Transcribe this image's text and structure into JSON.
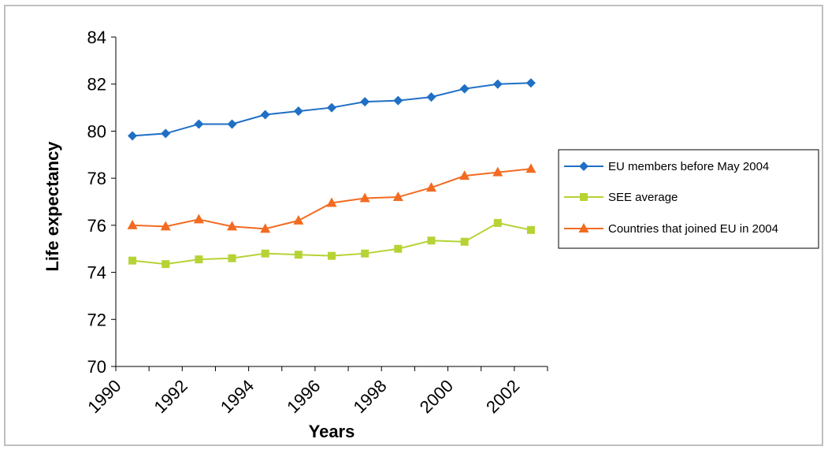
{
  "chart_data": {
    "type": "line",
    "title": "",
    "xlabel": "Years",
    "ylabel": "Life expectancy",
    "ylim": [
      70,
      84
    ],
    "yticks": [
      70,
      72,
      74,
      76,
      78,
      80,
      82,
      84
    ],
    "xlim": [
      1990,
      2003
    ],
    "xticks": [
      1990,
      1992,
      1994,
      1996,
      1998,
      2000,
      2002
    ],
    "x": [
      1990,
      1991,
      1992,
      1993,
      1994,
      1995,
      1996,
      1997,
      1998,
      1999,
      2000,
      2001,
      2002
    ],
    "grid": false,
    "legend_position": "right",
    "series": [
      {
        "name": "EU members before May 2004",
        "color": "#1f6fc5",
        "marker": "diamond",
        "values": [
          79.8,
          79.9,
          80.3,
          80.3,
          80.7,
          80.85,
          81.0,
          81.25,
          81.3,
          81.45,
          81.8,
          82.0,
          82.05
        ]
      },
      {
        "name": "SEE average",
        "color": "#b6d335",
        "marker": "square",
        "values": [
          74.5,
          74.35,
          74.55,
          74.6,
          74.8,
          74.75,
          74.7,
          74.8,
          75.0,
          75.35,
          75.3,
          76.1,
          75.8
        ]
      },
      {
        "name": "Countries that joined EU in 2004",
        "color": "#f26b21",
        "marker": "triangle",
        "values": [
          76.0,
          75.95,
          76.25,
          75.95,
          75.85,
          76.2,
          76.95,
          77.15,
          77.2,
          77.6,
          78.1,
          78.25,
          78.4
        ]
      }
    ]
  }
}
